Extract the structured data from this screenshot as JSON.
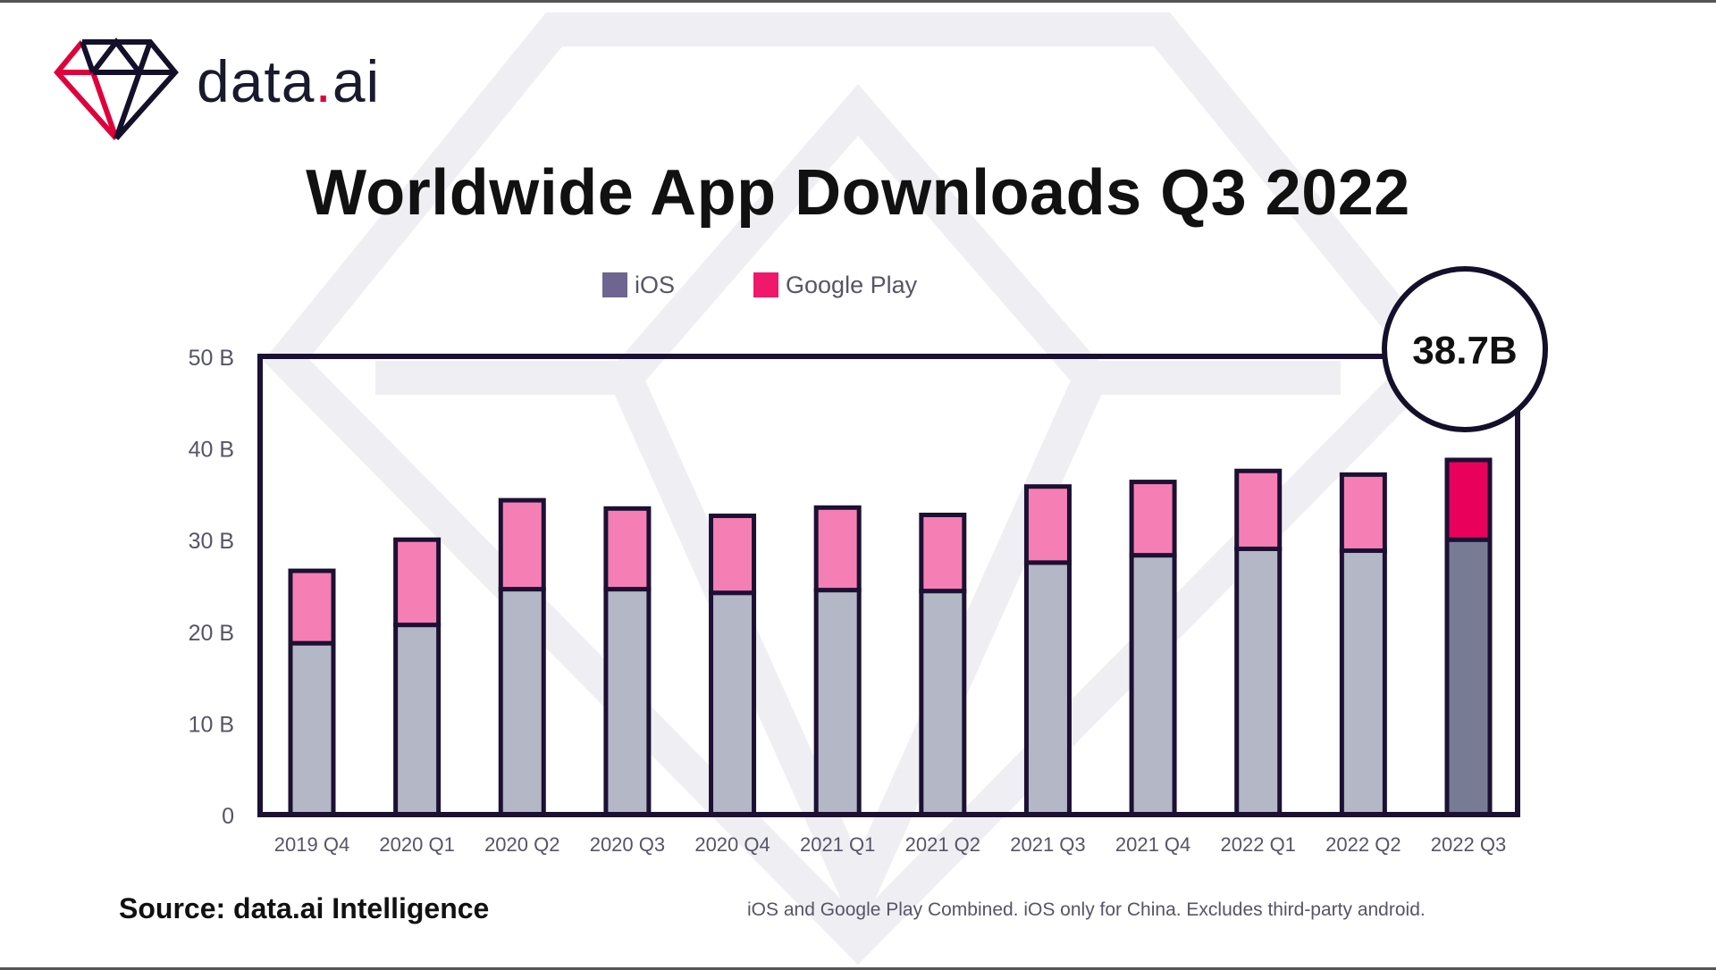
{
  "logo": {
    "text_prefix": "data",
    "text_dot": ".",
    "text_suffix": "ai"
  },
  "colors": {
    "ios": "#b4b7c6",
    "ios_highlight": "#777c94",
    "google_play": "#f57fb4",
    "google_play_highlight": "#e8005b",
    "outline": "#1c1033",
    "brand_red": "#e0003c"
  },
  "chart_data": {
    "type": "bar",
    "stacked": true,
    "title": "Worldwide App Downloads Q3 2022",
    "xlabel": "",
    "ylabel": "",
    "ylim": [
      0,
      50
    ],
    "yticks": [
      0,
      10,
      20,
      30,
      40,
      50
    ],
    "ytick_labels": [
      "0",
      "10 B",
      "20 B",
      "30 B",
      "40 B",
      "50 B"
    ],
    "categories": [
      "2019 Q4",
      "2020 Q1",
      "2020 Q2",
      "2020 Q3",
      "2020 Q4",
      "2021 Q1",
      "2021 Q2",
      "2021 Q3",
      "2021 Q4",
      "2022 Q1",
      "2022 Q2",
      "2022 Q3"
    ],
    "series": [
      {
        "name": "iOS",
        "values": [
          18.7,
          20.7,
          24.6,
          24.6,
          24.2,
          24.5,
          24.4,
          27.5,
          28.3,
          29.0,
          28.8,
          30.0
        ]
      },
      {
        "name": "Google Play",
        "values": [
          7.9,
          9.3,
          9.7,
          8.8,
          8.4,
          9.0,
          8.3,
          8.3,
          8.0,
          8.5,
          8.3,
          8.7
        ]
      }
    ],
    "highlight_index": 11,
    "callout": {
      "text": "38.7B",
      "category": "2022 Q3"
    },
    "legend": [
      "iOS",
      "Google Play"
    ],
    "legend_position": "top"
  },
  "source": "Source: data.ai Intelligence",
  "footnote": "iOS and Google Play Combined. iOS only for China. Excludes third-party android."
}
